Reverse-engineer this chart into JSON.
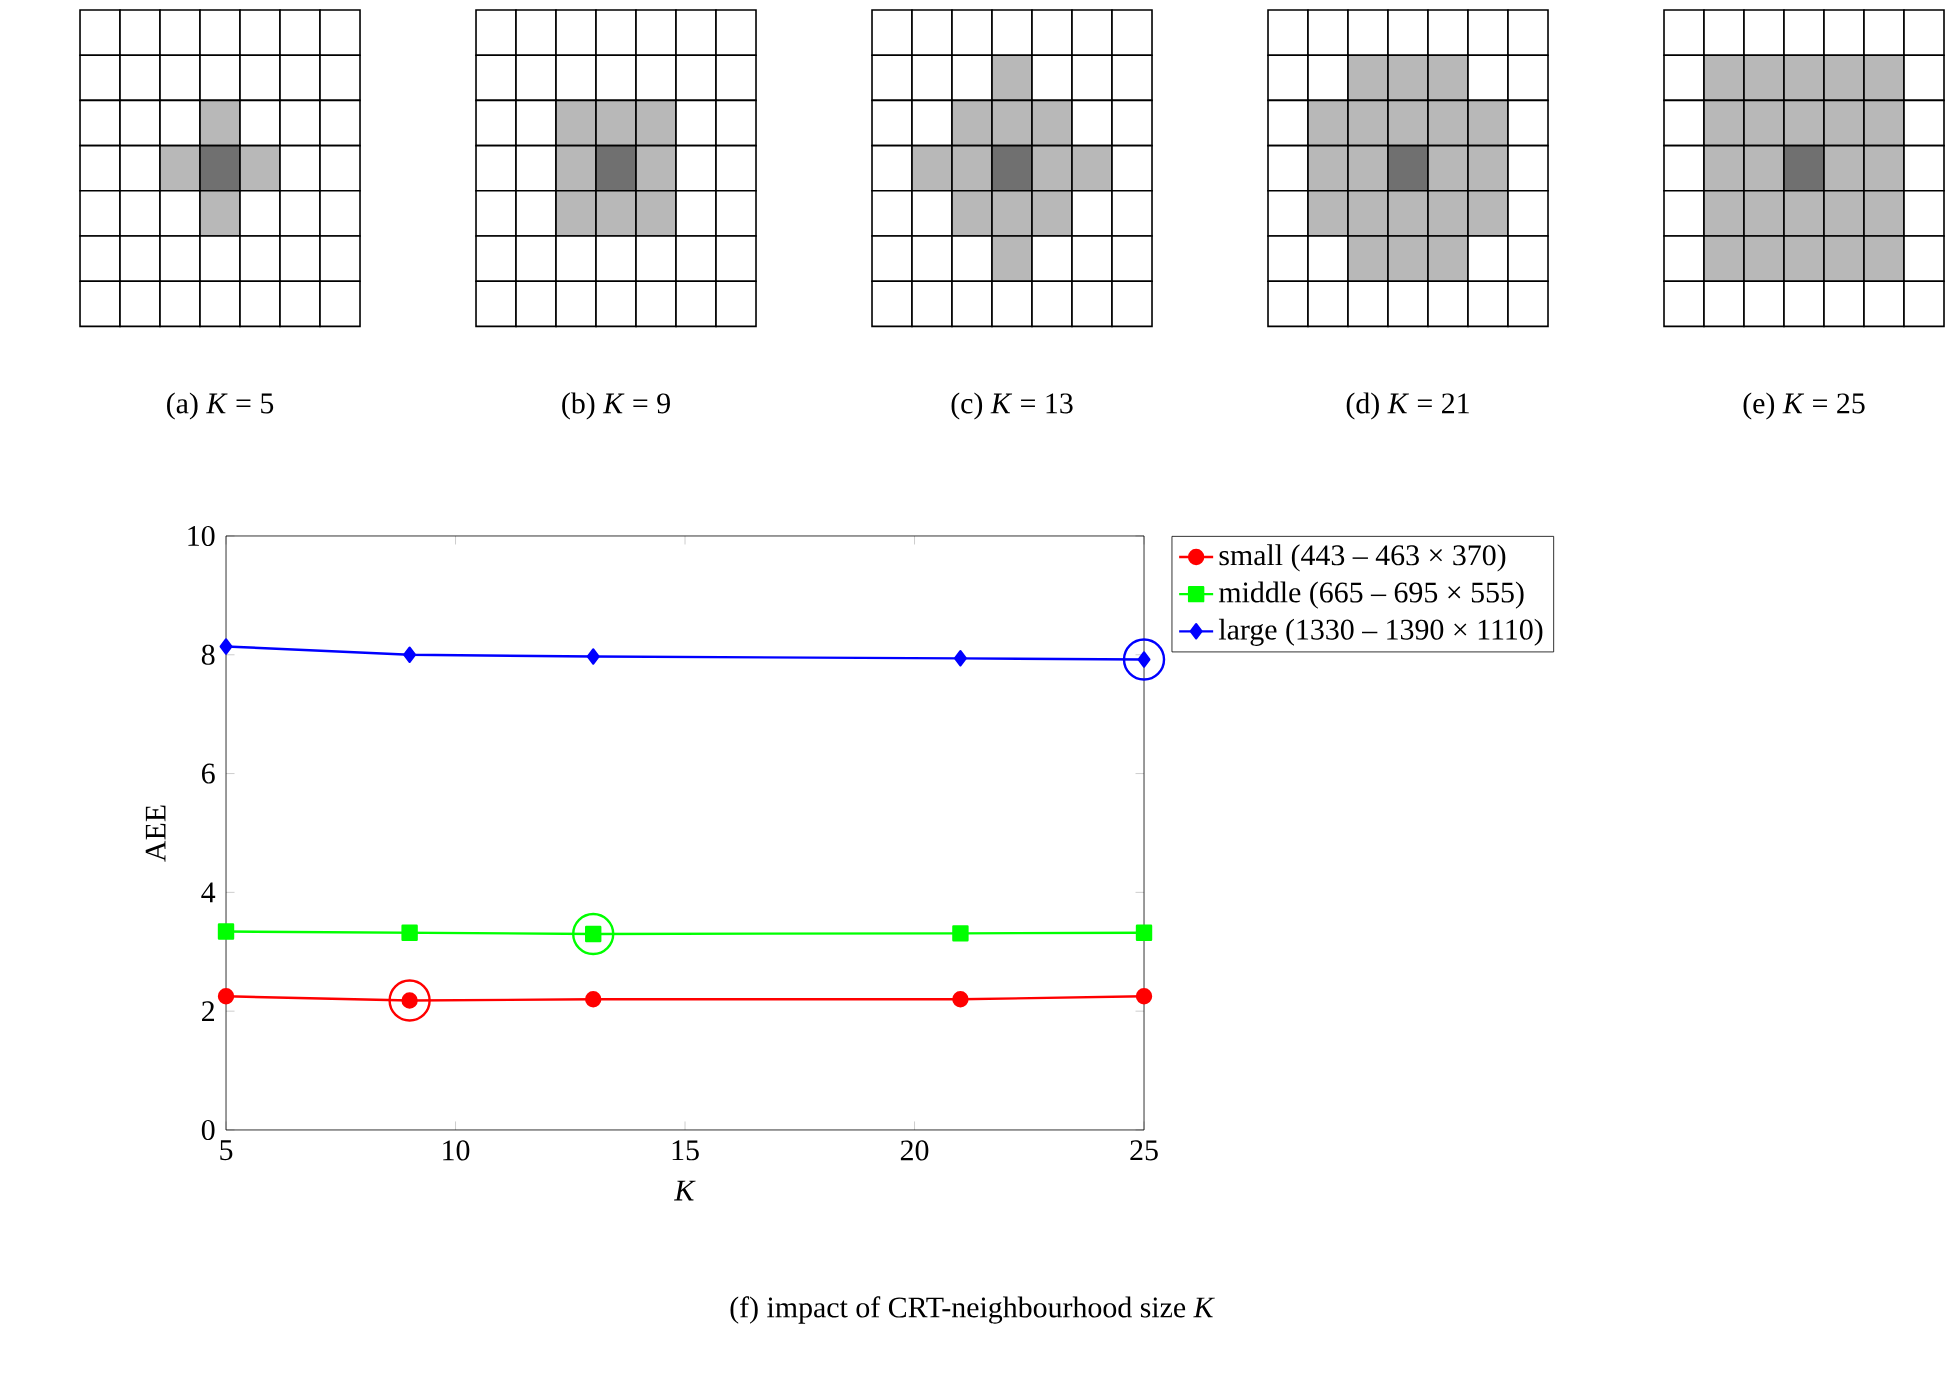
{
  "chart_data": {
    "type": "line",
    "title": "(f) impact of CRT-neighbourhood size *K*",
    "annotations": [
      "(a) *K* = 5",
      "(b) *K* = 9",
      "(c) *K* = 13",
      "(d) *K* = 21",
      "(e) *K* = 25"
    ],
    "xlabel": "*K*",
    "ylabel": "AEE",
    "xlim": [
      5,
      25
    ],
    "ylim": [
      0,
      10
    ],
    "xticks": [
      5,
      10,
      15,
      20,
      25
    ],
    "yticks": [
      0,
      2,
      4,
      6,
      8,
      10
    ],
    "legend": "right",
    "series": [
      {
        "name": "small (443 – 463 × 370)",
        "color": "#ff0000",
        "marker": "circle",
        "x": [
          5,
          9,
          13,
          21,
          25
        ],
        "values": [
          2.25,
          2.18,
          2.2,
          2.2,
          2.25
        ]
      },
      {
        "name": "middle (665 – 695 × 555)",
        "color": "#00ff00",
        "marker": "square",
        "x": [
          5,
          9,
          13,
          21,
          25
        ],
        "values": [
          3.34,
          3.32,
          3.3,
          3.31,
          3.32
        ]
      },
      {
        "name": "large (1330 – 1390 × 1110)",
        "color": "#0000ff",
        "marker": "diamond",
        "x": [
          5,
          9,
          13,
          21,
          25
        ],
        "values": [
          8.14,
          8.0,
          7.97,
          7.94,
          7.92
        ]
      },
      {
        "type": "scatter",
        "marker": "circle",
        "x": [
          9,
          13,
          25
        ],
        "values": [
          2.18,
          3.3,
          7.92
        ],
        "colors": [
          "#ff0000",
          "#00ff00",
          "#0000ff"
        ]
      }
    ]
  }
}
